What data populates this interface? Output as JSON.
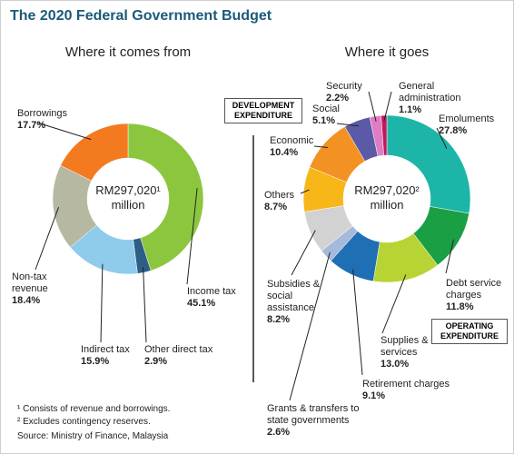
{
  "title": "The 2020 Federal Government Budget",
  "chart_data": [
    {
      "type": "pie",
      "subtitle": "Where it comes from",
      "center_label": "RM297,020¹",
      "center_unit": "million",
      "categories": [
        "Income tax",
        "Other direct tax",
        "Indirect tax",
        "Non-tax revenue",
        "Borrowings"
      ],
      "values": [
        45.1,
        2.9,
        15.9,
        18.4,
        17.7
      ],
      "value_labels": [
        "45.1%",
        "2.9%",
        "15.9%",
        "18.4%",
        "17.7%"
      ],
      "colors": [
        "#8cc63f",
        "#2d5f86",
        "#8fcbea",
        "#b6b8a2",
        "#f47a20"
      ]
    },
    {
      "type": "pie",
      "subtitle": "Where it goes",
      "center_label": "RM297,020²",
      "center_unit": "million",
      "categories": [
        "Emoluments",
        "Debt service charges",
        "Supplies & services",
        "Retirement charges",
        "Grants & transfers to state governments",
        "Subsidies & social assistance",
        "Others",
        "Economic",
        "Social",
        "Security",
        "General administration"
      ],
      "values": [
        27.8,
        11.8,
        13.0,
        9.1,
        2.6,
        8.2,
        8.7,
        10.4,
        5.1,
        2.2,
        1.1
      ],
      "value_labels": [
        "27.8%",
        "11.8%",
        "13.0%",
        "9.1%",
        "2.6%",
        "8.2%",
        "8.7%",
        "10.4%",
        "5.1%",
        "2.2%",
        "1.1%"
      ],
      "colors": [
        "#1db5a8",
        "#1a9f45",
        "#b8d434",
        "#1f6fb5",
        "#a5bada",
        "#d2d2d2",
        "#f8b719",
        "#f39222",
        "#5a5aa6",
        "#e07cc4",
        "#c2185b"
      ]
    }
  ],
  "annotations": [
    "DEVELOPMENT EXPENDITURE",
    "OPERATING EXPENDITURE"
  ],
  "footnotes": [
    "¹ Consists of revenue and borrowings.",
    "² Excludes contingency reserves.",
    "Source: Ministry of Finance, Malaysia"
  ]
}
